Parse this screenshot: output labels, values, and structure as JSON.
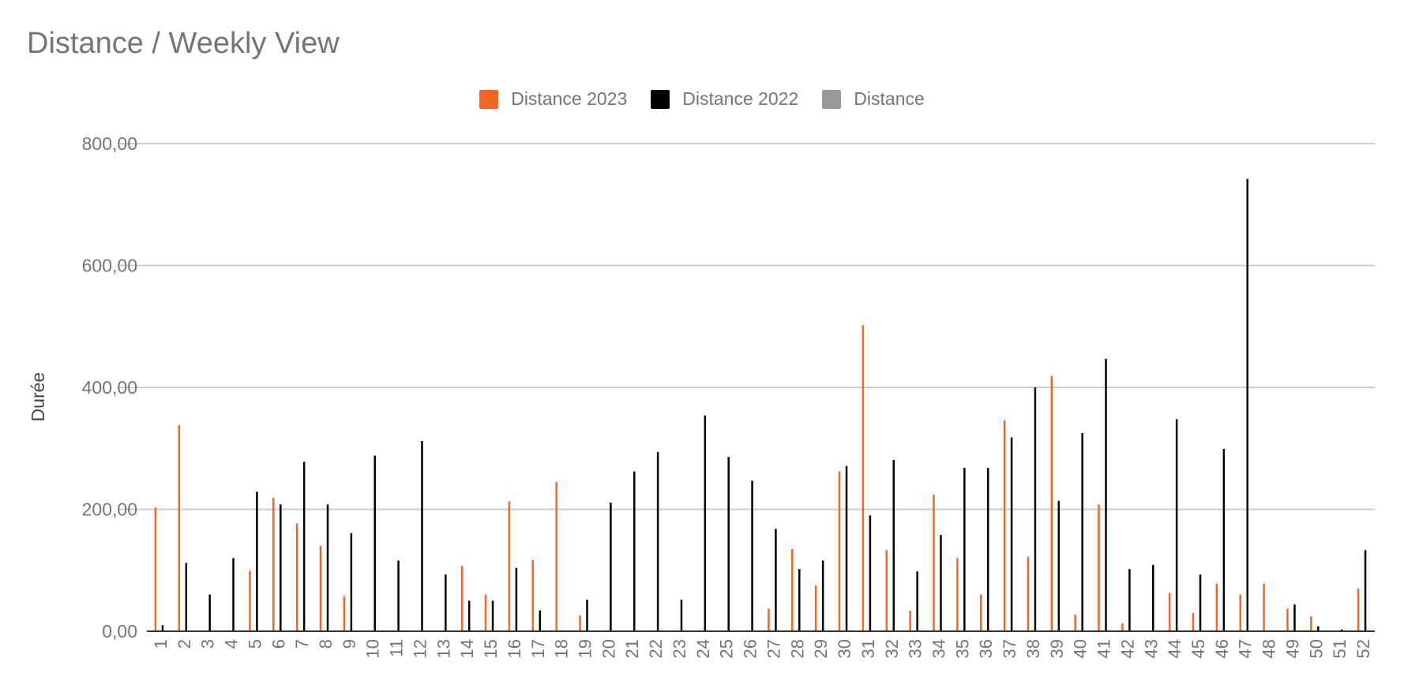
{
  "chart_data": {
    "type": "bar",
    "title": "Distance / Weekly View",
    "ylabel": "Durée",
    "xlabel": "",
    "ylim": [
      0,
      800
    ],
    "yticks": [
      0,
      200,
      400,
      600,
      800
    ],
    "ytick_labels": [
      "0,00",
      "200,00",
      "400,00",
      "600,00",
      "800,00"
    ],
    "grid": true,
    "legend_position": "top",
    "categories": [
      "1",
      "2",
      "3",
      "4",
      "5",
      "6",
      "7",
      "8",
      "9",
      "10",
      "11",
      "12",
      "13",
      "14",
      "15",
      "16",
      "17",
      "18",
      "19",
      "20",
      "21",
      "22",
      "23",
      "24",
      "25",
      "26",
      "27",
      "28",
      "29",
      "30",
      "31",
      "32",
      "33",
      "34",
      "35",
      "36",
      "37",
      "38",
      "39",
      "40",
      "41",
      "42",
      "43",
      "44",
      "45",
      "46",
      "47",
      "48",
      "49",
      "50",
      "51",
      "52"
    ],
    "series": [
      {
        "name": "Distance 2023",
        "color": "#f26522",
        "values": [
          203,
          338,
          0,
          0,
          99,
          219,
          177,
          140,
          57,
          0,
          0,
          0,
          0,
          107,
          60,
          213,
          117,
          245,
          26,
          0,
          0,
          0,
          0,
          0,
          0,
          0,
          37,
          135,
          75,
          262,
          502,
          133,
          34,
          224,
          120,
          60,
          346,
          122,
          419,
          27,
          208,
          13,
          0,
          63,
          30,
          78,
          60,
          78,
          37,
          24,
          0,
          70
        ]
      },
      {
        "name": "Distance 2022",
        "color": "#000000",
        "values": [
          10,
          112,
          60,
          120,
          229,
          208,
          278,
          208,
          161,
          288,
          116,
          312,
          93,
          50,
          50,
          104,
          34,
          0,
          52,
          211,
          262,
          294,
          52,
          354,
          286,
          247,
          168,
          102,
          116,
          271,
          190,
          281,
          98,
          158,
          268,
          268,
          318,
          400,
          214,
          325,
          447,
          102,
          109,
          348,
          93,
          299,
          742,
          0,
          44,
          8,
          3,
          133
        ]
      },
      {
        "name": "Distance",
        "color": "#999999",
        "values": [
          0,
          0,
          0,
          0,
          0,
          0,
          0,
          0,
          0,
          0,
          0,
          0,
          0,
          0,
          0,
          0,
          0,
          0,
          0,
          0,
          0,
          0,
          0,
          0,
          0,
          0,
          0,
          0,
          0,
          0,
          0,
          0,
          0,
          0,
          0,
          0,
          0,
          0,
          0,
          0,
          0,
          0,
          0,
          0,
          0,
          0,
          0,
          0,
          0,
          0,
          0,
          0
        ]
      }
    ]
  }
}
